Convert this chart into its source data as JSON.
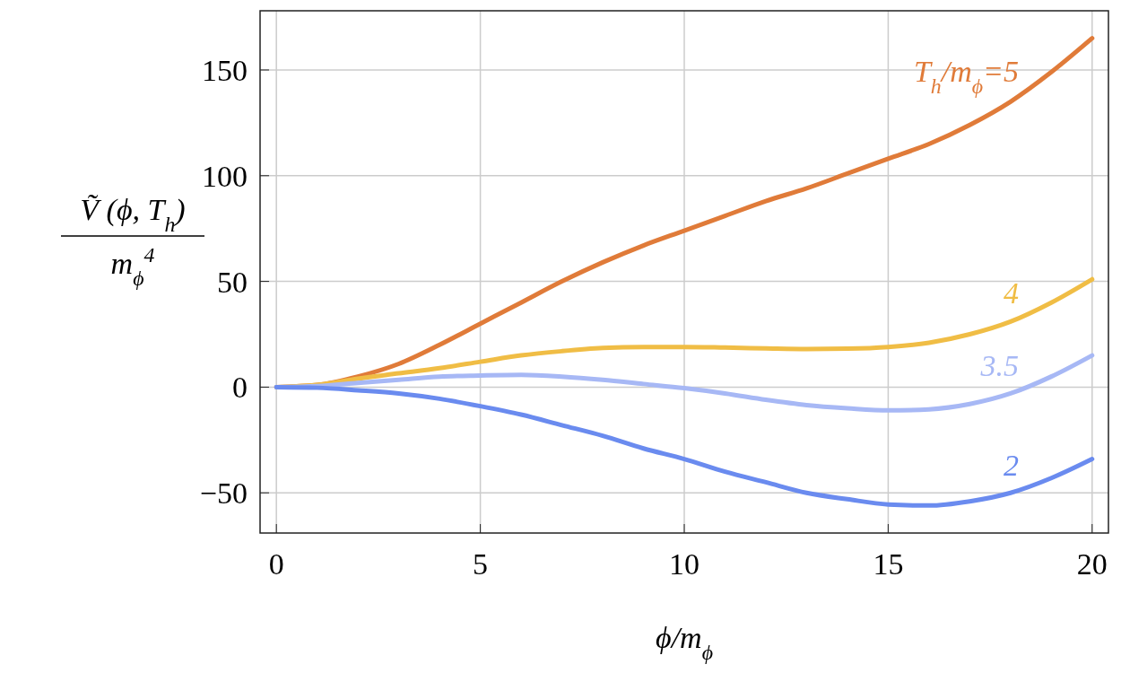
{
  "chart_data": {
    "type": "line",
    "xlabel": "ϕ/m$_{ϕ}$",
    "ylabel": "Ṽ (ϕ, T$_{h}$)\nm$_{ϕ}$$^{4}$",
    "x": [
      0,
      1,
      2,
      3,
      4,
      5,
      6,
      7,
      8,
      9,
      10,
      11,
      12,
      13,
      14,
      15,
      16,
      17,
      18,
      19,
      20
    ],
    "series": [
      {
        "name": "T$_{h}$/m$_{ϕ}$=5",
        "color": "#e07b39",
        "values": [
          0,
          1,
          5,
          11,
          20,
          30,
          40,
          50,
          59,
          67,
          74,
          81,
          88,
          94,
          101,
          108,
          115,
          124,
          135,
          149,
          165
        ]
      },
      {
        "name": "4",
        "color": "#f0bd45",
        "values": [
          0,
          1,
          4,
          6.5,
          9,
          12,
          15,
          17,
          18.5,
          19,
          19,
          18.7,
          18.3,
          18,
          18.2,
          19,
          21,
          25,
          31,
          40,
          51
        ]
      },
      {
        "name": "3.5",
        "color": "#a7b8f5",
        "values": [
          0,
          0.5,
          2,
          3.5,
          5,
          5.5,
          5.8,
          5,
          3.5,
          1.5,
          -0.5,
          -3,
          -6,
          -8.5,
          -10,
          -11,
          -10.5,
          -8,
          -3,
          5,
          15
        ]
      },
      {
        "name": "2",
        "color": "#6a8bef",
        "values": [
          0,
          -0.3,
          -1.5,
          -3,
          -5.5,
          -9,
          -13,
          -18,
          -23,
          -29,
          -34,
          -40,
          -45,
          -50,
          -53,
          -55.5,
          -56,
          -54,
          -50,
          -43,
          -34
        ]
      }
    ],
    "xlim": [
      -0.4,
      20.4
    ],
    "xticks": [
      0,
      5,
      10,
      15,
      20
    ],
    "ylim": [
      -69,
      178
    ],
    "yticks": [
      -50,
      0,
      50,
      100,
      150
    ],
    "grid": true,
    "marker": "none",
    "line_style": "solid"
  }
}
